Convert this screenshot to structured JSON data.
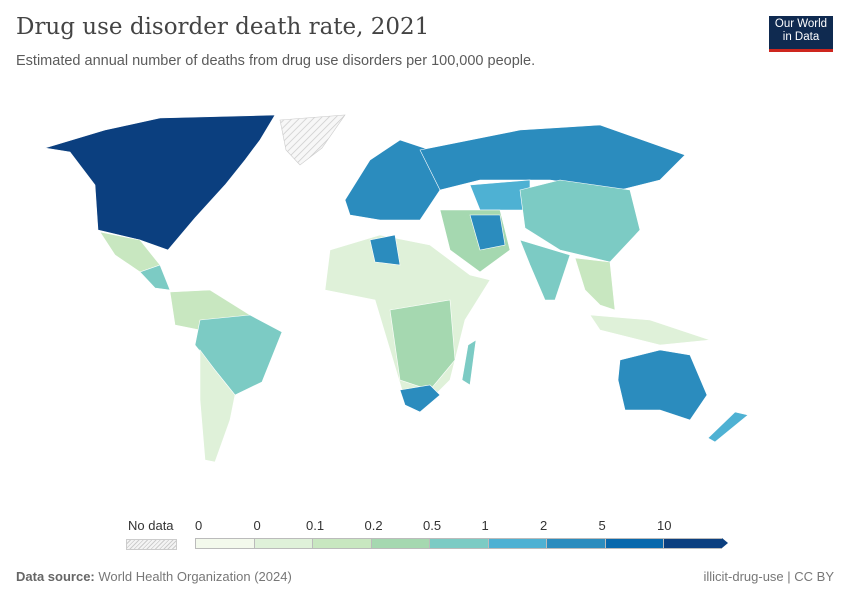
{
  "header": {
    "title": "Drug use disorder death rate, 2021",
    "subtitle": "Estimated annual number of deaths from drug use disorders per 100,000 people.",
    "logo": "Our World in Data"
  },
  "legend": {
    "no_data_label": "No data",
    "ticks": [
      "0",
      "0",
      "0.1",
      "0.2",
      "0.5",
      "1",
      "2",
      "5",
      "10"
    ],
    "colors": [
      "#f3f9ec",
      "#dff1d9",
      "#c8e7c0",
      "#a5d8b0",
      "#7ccbc4",
      "#4eb1d3",
      "#2b8cbe",
      "#0868ac",
      "#0b3f7f"
    ]
  },
  "footer": {
    "source_label": "Data source:",
    "source": "World Health Organization (2024)",
    "slug": "illicit-drug-use | CC BY"
  }
}
